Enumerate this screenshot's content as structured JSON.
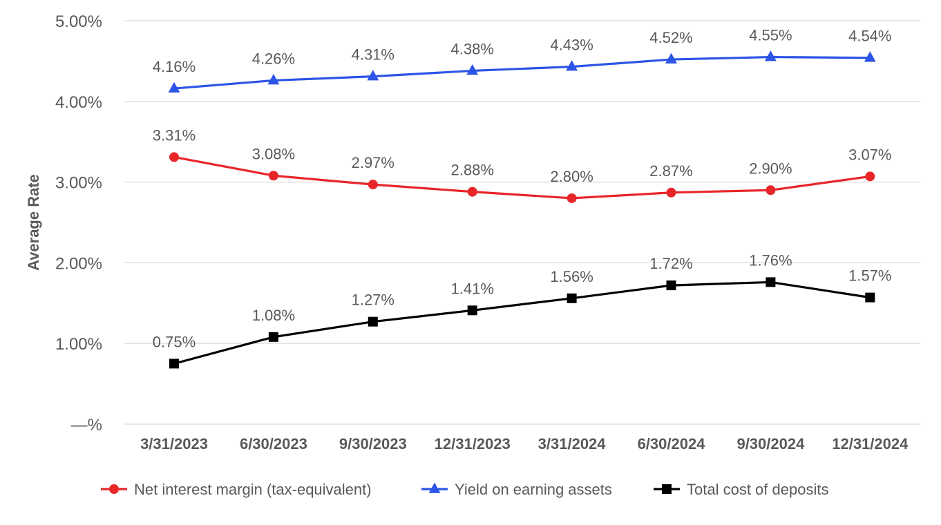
{
  "chart_data": {
    "type": "line",
    "xlabel": "",
    "ylabel": "Average Rate",
    "categories": [
      "3/31/2023",
      "6/30/2023",
      "9/30/2023",
      "12/31/2023",
      "3/31/2024",
      "6/30/2024",
      "9/30/2024",
      "12/31/2024"
    ],
    "ylim": [
      0,
      5
    ],
    "yticks": [
      0,
      1,
      2,
      3,
      4,
      5
    ],
    "ytick_labels": [
      "—%",
      "1.00%",
      "2.00%",
      "3.00%",
      "4.00%",
      "5.00%"
    ],
    "grid": "horizontal",
    "legend": "bottom",
    "series": [
      {
        "name": "Net interest margin (tax-equivalent)",
        "color": "#e8262a",
        "marker": "circle",
        "values": [
          3.31,
          3.08,
          2.97,
          2.88,
          2.8,
          2.87,
          2.9,
          3.07
        ],
        "labels": [
          "3.31%",
          "3.08%",
          "2.97%",
          "2.88%",
          "2.80%",
          "2.87%",
          "2.90%",
          "3.07%"
        ]
      },
      {
        "name": "Yield on earning assets",
        "color": "#2c54e6",
        "marker": "triangle",
        "values": [
          4.16,
          4.26,
          4.31,
          4.38,
          4.43,
          4.52,
          4.55,
          4.54
        ],
        "labels": [
          "4.16%",
          "4.26%",
          "4.31%",
          "4.38%",
          "4.43%",
          "4.52%",
          "4.55%",
          "4.54%"
        ]
      },
      {
        "name": "Total cost of deposits",
        "color": "#000000",
        "marker": "square",
        "values": [
          0.75,
          1.08,
          1.27,
          1.41,
          1.56,
          1.72,
          1.76,
          1.57
        ],
        "labels": [
          "0.75%",
          "1.08%",
          "1.27%",
          "1.41%",
          "1.56%",
          "1.72%",
          "1.76%",
          "1.57%"
        ]
      }
    ]
  }
}
